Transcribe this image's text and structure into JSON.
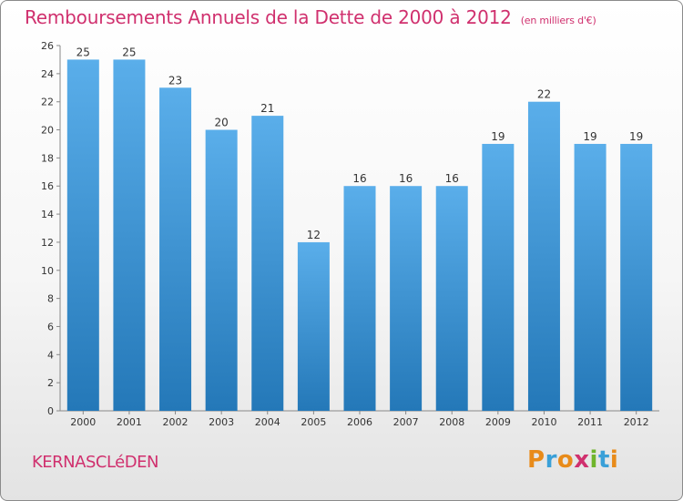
{
  "title": "Remboursements Annuels de la Dette de 2000 à 2012",
  "subtitle": "(en milliers d'€)",
  "town": "KERNASCLéDEN",
  "logo": {
    "text": "Proxiti",
    "letter_colors": [
      "#e88b1a",
      "#3aa0d8",
      "#e88b1a",
      "#d0306e",
      "#6fb52c",
      "#3aa0d8",
      "#e88b1a"
    ]
  },
  "colors": {
    "bar_light": "#5aaeea",
    "bar_dark": "#2478b8",
    "accent": "#d0306e"
  },
  "chart_data": {
    "type": "bar",
    "categories": [
      "2000",
      "2001",
      "2002",
      "2003",
      "2004",
      "2005",
      "2006",
      "2007",
      "2008",
      "2009",
      "2010",
      "2011",
      "2012"
    ],
    "values": [
      25,
      25,
      23,
      20,
      21,
      12,
      16,
      16,
      16,
      19,
      22,
      19,
      19
    ],
    "ylim": [
      0,
      26
    ],
    "yticks": [
      0,
      2,
      4,
      6,
      8,
      10,
      12,
      14,
      16,
      18,
      20,
      22,
      24,
      26
    ],
    "grid": false,
    "legend": "none"
  }
}
